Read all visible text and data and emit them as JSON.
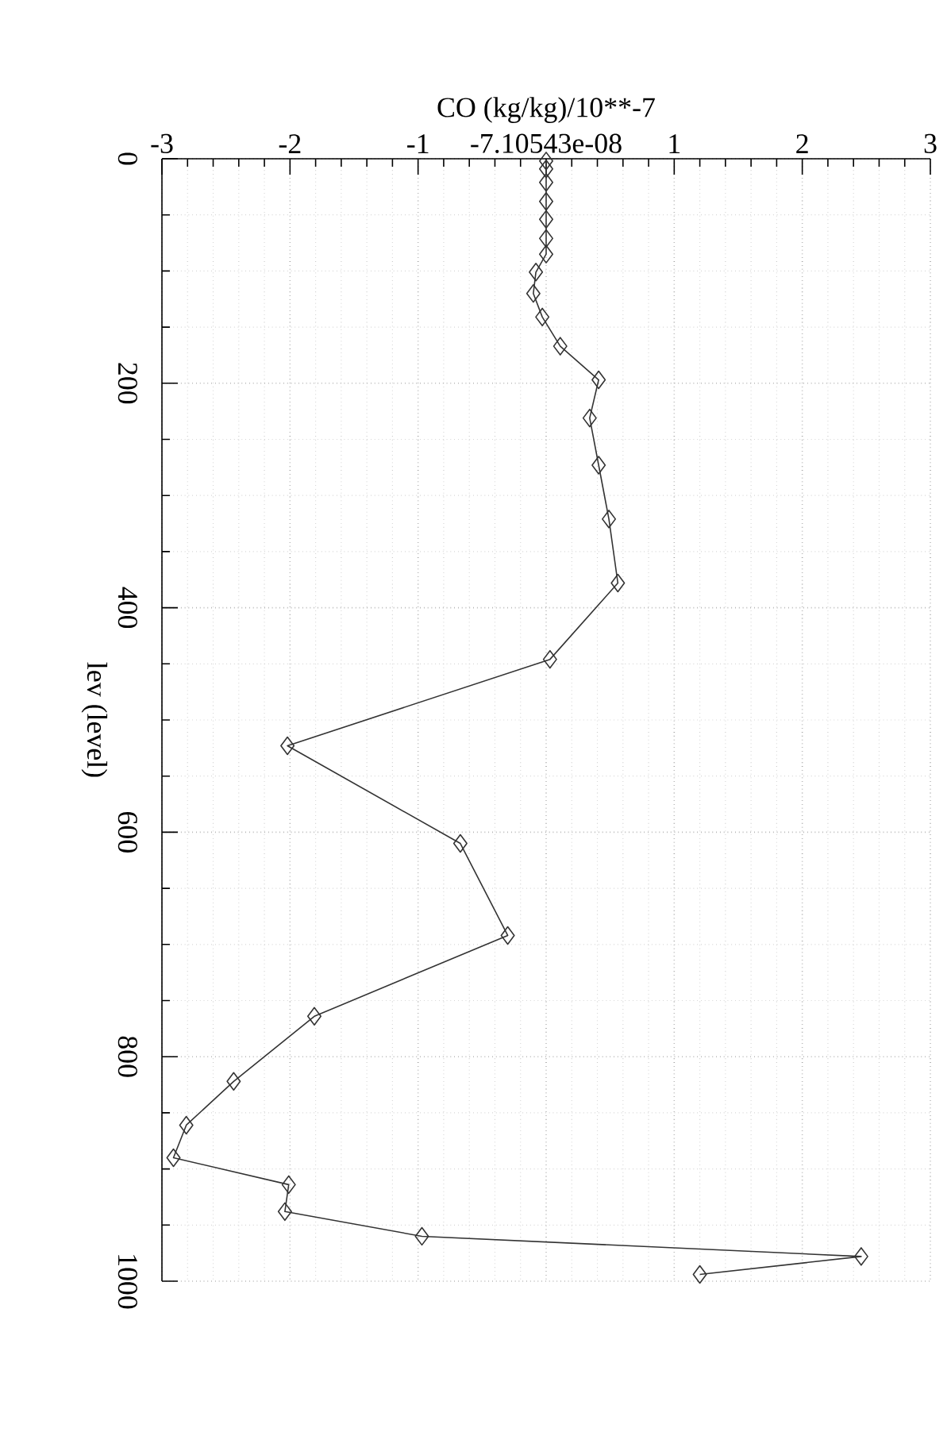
{
  "chart_data": {
    "type": "line",
    "xlabel": "CO (kg/kg)/10**-7",
    "ylabel": "lev (level)",
    "series": [
      {
        "color": "#333333",
        "x": [
          0,
          0,
          0,
          0,
          0,
          0,
          0,
          -0.08,
          -0.1,
          -0.03,
          0.11,
          0.41,
          0.34,
          0.41,
          0.49,
          0.56,
          0.03,
          -2.02,
          -0.67,
          -0.3,
          -1.81,
          -2.44,
          -2.81,
          -2.91,
          -2.01,
          -2.04,
          -0.97,
          2.46,
          1.2
        ],
        "values": [
          2,
          9,
          21,
          38,
          54,
          71,
          85,
          101,
          120,
          141,
          167,
          197,
          231,
          273,
          321,
          378,
          446,
          523,
          610,
          692,
          764,
          822,
          861,
          890,
          914,
          938,
          960,
          978,
          994
        ]
      }
    ],
    "xlim": [
      -3,
      3
    ],
    "ylim": [
      1000,
      0
    ],
    "xticks": [
      -3,
      -2,
      -1,
      {
        "value": -7.10543e-08,
        "label": "-7.10543e-08"
      },
      1,
      2,
      3
    ],
    "yticks": [
      0,
      200,
      400,
      600,
      800,
      1000
    ],
    "grid": true,
    "marker": "diamond"
  }
}
